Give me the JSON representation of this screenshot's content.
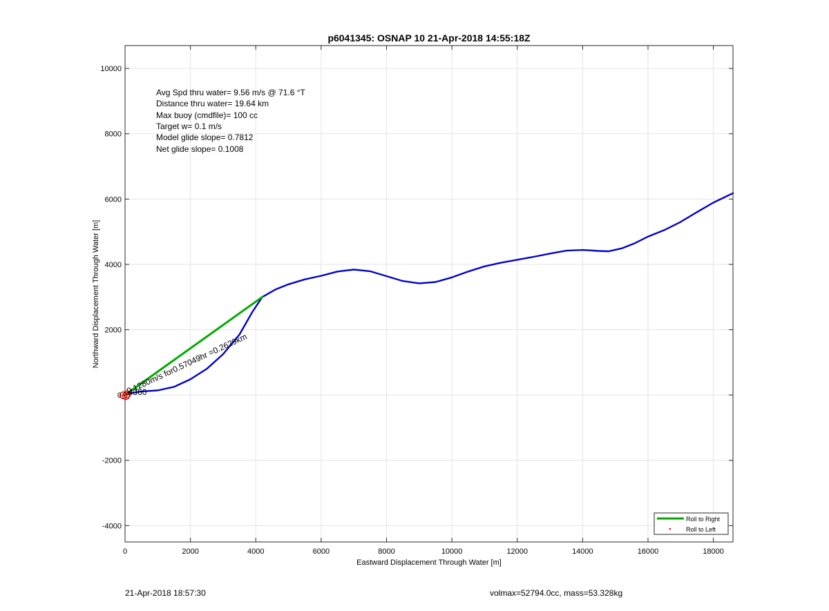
{
  "chart_data": {
    "type": "line",
    "title": "p6041345: OSNAP 10 21-Apr-2018 14:55:18Z",
    "xlabel": "Eastward Displacement Through Water [m]",
    "ylabel": "Northward Displacement Through Water [m]",
    "xlim": [
      0,
      18600
    ],
    "ylim": [
      -4500,
      10700
    ],
    "xticks": [
      0,
      2000,
      4000,
      6000,
      8000,
      10000,
      12000,
      14000,
      16000,
      18000
    ],
    "yticks": [
      -4000,
      -2000,
      0,
      2000,
      4000,
      6000,
      8000,
      10000
    ],
    "grid": true,
    "legend_position": "bottom-right",
    "stats": [
      "Avg Spd thru water=  9.56 m/s @  71.6 °T",
      "Distance thru water= 19.64 km",
      "Max buoy (cmdfile)= 100 cc",
      "Target w= 0.1 m/s",
      "Model glide slope= 0.7812",
      "Net glide slope= 0.1008"
    ],
    "annotations": [
      {
        "text": "0.1280m/s for0.57049hr =0.2629km",
        "x": 100,
        "y": 30,
        "rotation_deg": -25
      },
      {
        "text": "4360",
        "x": 100,
        "y": 0
      }
    ],
    "series": [
      {
        "color": "#0000cc",
        "style": "line",
        "x": [
          0,
          200,
          500,
          1000,
          1500,
          2000,
          2500,
          3000,
          3500,
          3900,
          4200,
          4600,
          5000,
          5500,
          6000,
          6500,
          7000,
          7500,
          8000,
          8500,
          9000,
          9500,
          10000,
          10500,
          11000,
          11500,
          12000,
          12500,
          13000,
          13500,
          14000,
          14500,
          14800,
          15200,
          15600,
          16000,
          16500,
          17000,
          17500,
          18000,
          18600
        ],
        "y": [
          0,
          60,
          110,
          140,
          250,
          480,
          800,
          1250,
          1850,
          2550,
          3000,
          3230,
          3390,
          3540,
          3650,
          3780,
          3840,
          3790,
          3640,
          3490,
          3420,
          3460,
          3600,
          3780,
          3940,
          4050,
          4140,
          4230,
          4330,
          4420,
          4440,
          4410,
          4400,
          4490,
          4650,
          4850,
          5050,
          5300,
          5600,
          5890,
          6180
        ]
      },
      {
        "name": "Roll to Right",
        "color": "#00aa00",
        "style": "line",
        "x": [
          0,
          4200
        ],
        "y": [
          0,
          3000
        ]
      },
      {
        "name": "Roll to Left",
        "color": "#ff0000",
        "style": "marker",
        "x": [
          0
        ],
        "y": [
          0
        ]
      }
    ],
    "circles": [
      {
        "x": -50,
        "y": -10
      },
      {
        "x": 30,
        "y": -30
      },
      {
        "x": 60,
        "y": 20
      }
    ]
  },
  "footer": {
    "date": "21-Apr-2018 18:57:30",
    "mass": "volmax=52794.0cc, mass=53.328kg"
  }
}
